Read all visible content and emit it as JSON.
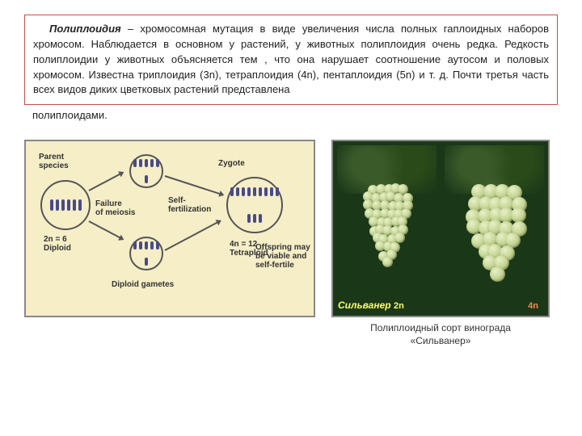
{
  "paragraph": {
    "term": "Полиплоидия",
    "body_in_box": " – хромосомная мутация в виде увеличения числа полных гаплоидных наборов хромосом. Наблюдается в основном у растений, у животных полиплоидия очень редка. Редкость полиплоидии у животных объясняется тем , что она нарушает соотношение аутосом и половых хромосом. Известна триплоидия (3n), тетраплоидия (4n), пентаплоидия (5n) и т. д. Почти третья часть всех видов диких цветковых растений представлена",
    "body_out_box": "полиплоидами."
  },
  "diagram": {
    "labels": {
      "parent": "Parent\nspecies",
      "zygote": "Zygote",
      "failure": "Failure\nof meiosis",
      "self": "Self-\nfertilization",
      "offspring": "Offspring may\nbe viable and\nself-fertile",
      "n2": "2n = 6\nDiploid",
      "n4": "4n = 12\nTetraploid",
      "gametes": "Diploid gametes"
    },
    "colors": {
      "bg": "#f5eec7",
      "chromosome": "#4a4a8a",
      "border": "#555555"
    }
  },
  "grapes": {
    "left_label": "Сильванер",
    "left_n": "2n",
    "right_n": "4n",
    "caption_l1": "Полиплоидный сорт винограда",
    "caption_l2": "«Сильванер»"
  }
}
